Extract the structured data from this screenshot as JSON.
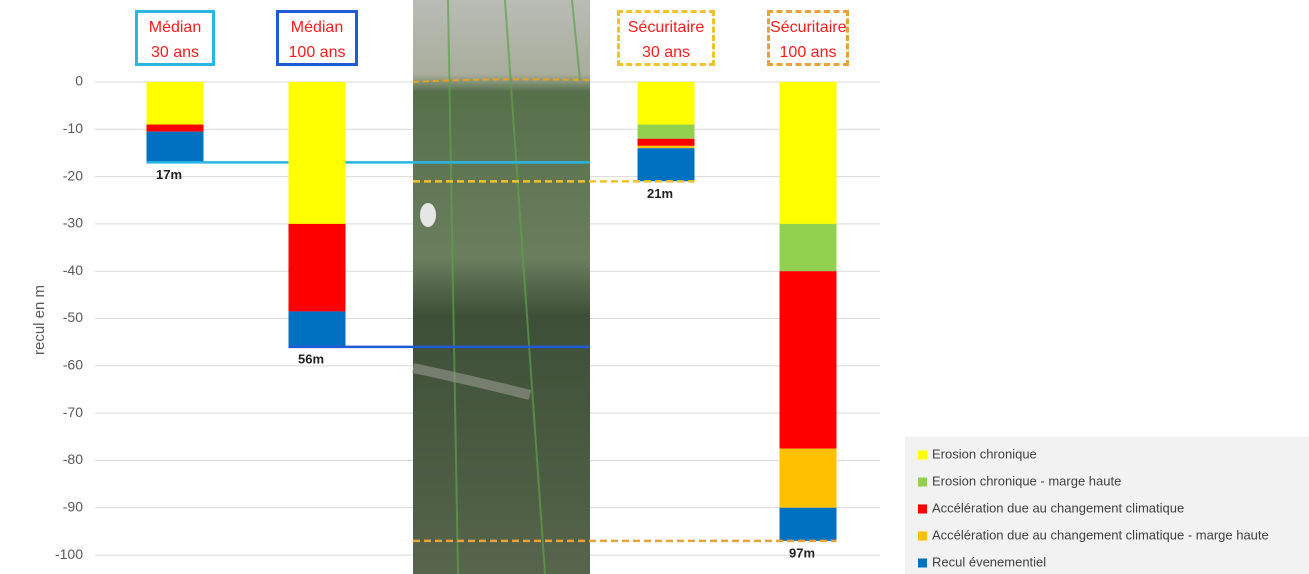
{
  "chart_data": {
    "type": "stacked_bar",
    "y_axis_label": "recul en m",
    "categories": [
      "Médian 30 ans",
      "Médian 100 ans",
      "Sécuritaire 30 ans",
      "Sécuritaire 100 ans"
    ],
    "category_colors": [
      "#29b6e3",
      "#1f5bd6",
      "#f2c12e",
      "#e9a23b"
    ],
    "category_dashed": [
      false,
      false,
      true,
      true
    ],
    "series": [
      {
        "name": "Erosion chronique",
        "color": "#ffff00",
        "values": [
          -9,
          -30,
          -9,
          -30
        ]
      },
      {
        "name": "Erosion chronique - marge haute",
        "color": "#92d050",
        "values": [
          0,
          0,
          -3,
          -10
        ]
      },
      {
        "name": "Accélération due au changement climatique",
        "color": "#ff0000",
        "values": [
          -1.5,
          -18.5,
          -1.5,
          -37.5
        ]
      },
      {
        "name": "Accélération due au changement climatique - marge haute",
        "color": "#ffc000",
        "values": [
          0,
          0,
          -0.5,
          -12.5
        ]
      },
      {
        "name": "Recul évenementiel",
        "color": "#0070c0",
        "values": [
          -6.5,
          -7.5,
          -7,
          -7
        ]
      }
    ],
    "totals": {
      "values": [
        -17,
        -56,
        -21,
        -97
      ],
      "value_labels": [
        "17m",
        "56m",
        "21m",
        "97m"
      ]
    },
    "ylim": [
      -104,
      15
    ],
    "yticks": [
      0,
      -10,
      -20,
      -30,
      -40,
      -50,
      -60,
      -70,
      -80,
      -90,
      -100
    ],
    "grid": true
  }
}
